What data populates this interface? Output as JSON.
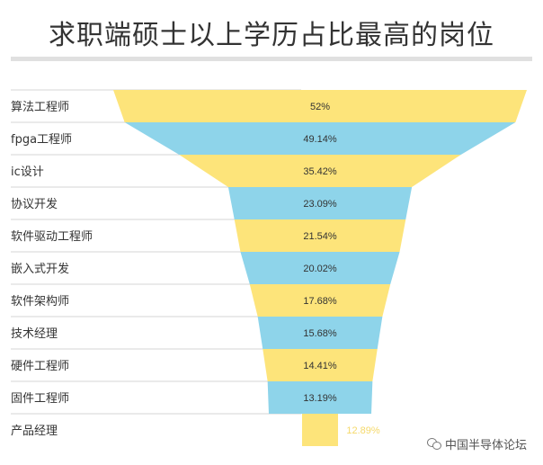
{
  "header": {
    "title": "求职端硕士以上学历占比最高的岗位"
  },
  "watermark": {
    "text": "中国半导体论坛",
    "icon": "wechat-icon"
  },
  "colors": {
    "yellow": "#fde47a",
    "blue": "#8ed4ea"
  },
  "chart_data": {
    "type": "funnel",
    "title": "求职端硕士以上学历占比最高的岗位",
    "unit": "%",
    "categories": [
      "算法工程师",
      "fpga工程师",
      "ic设计",
      "协议开发",
      "软件驱动工程师",
      "嵌入式开发",
      "软件架构师",
      "技术经理",
      "硬件工程师",
      "固件工程师",
      "产品经理"
    ],
    "values": [
      52,
      49.14,
      35.42,
      23.09,
      21.54,
      20.02,
      17.68,
      15.68,
      14.41,
      13.19,
      12.89
    ],
    "value_labels": [
      "52%",
      "49.14%",
      "35.42%",
      "23.09%",
      "21.54%",
      "20.02%",
      "17.68%",
      "15.68%",
      "14.41%",
      "13.19%",
      "12.89%"
    ]
  }
}
